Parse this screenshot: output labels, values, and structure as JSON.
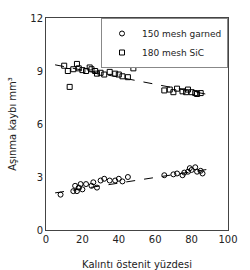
{
  "chart_data": {
    "type": "scatter",
    "xlabel": "Kalıntı östenit yüzdesi",
    "ylabel": "Aşınma kaybı mm³",
    "xlim": [
      0,
      100
    ],
    "ylim": [
      0,
      12
    ],
    "xticks": [
      0,
      20,
      40,
      60,
      80,
      100
    ],
    "yticks": [
      0,
      3,
      6,
      9,
      12
    ],
    "grid": false,
    "legend": "upper right",
    "series": [
      {
        "name": "150 mesh garned",
        "type": "scatter",
        "marker": "circle",
        "color": "black",
        "x": [
          8,
          15,
          16,
          17,
          18,
          19,
          20,
          22,
          25,
          26,
          28,
          30,
          32,
          35,
          38,
          40,
          42,
          45,
          65,
          70,
          72,
          75,
          76,
          78,
          79,
          80,
          82,
          83,
          85,
          86
        ],
        "values": [
          2.0,
          2.2,
          2.5,
          2.2,
          2.4,
          2.6,
          2.3,
          2.6,
          2.5,
          2.7,
          2.4,
          2.8,
          2.9,
          2.8,
          2.8,
          2.9,
          2.75,
          3.0,
          3.1,
          3.15,
          3.2,
          3.1,
          3.25,
          3.3,
          3.5,
          3.4,
          3.55,
          3.3,
          3.35,
          3.2
        ]
      },
      {
        "name": "180 mesh SiC",
        "type": "scatter",
        "marker": "square",
        "color": "black",
        "x": [
          10,
          12,
          15,
          17,
          18,
          20,
          22,
          24,
          25,
          27,
          28,
          30,
          32,
          35,
          38,
          40,
          42,
          45,
          48,
          65,
          68,
          70,
          72,
          75,
          77,
          78,
          80,
          82,
          83,
          85,
          13
        ],
        "values": [
          9.3,
          9.0,
          9.1,
          9.4,
          9.15,
          9.05,
          9.0,
          9.2,
          9.1,
          9.0,
          8.85,
          8.9,
          8.8,
          8.95,
          8.85,
          8.8,
          8.7,
          8.65,
          9.15,
          7.9,
          7.95,
          7.8,
          8.0,
          7.85,
          7.8,
          7.95,
          7.8,
          7.75,
          7.7,
          7.75,
          8.1
        ]
      },
      {
        "type": "line",
        "line_style": "dashed",
        "color": "black",
        "x": [
          5,
          90
        ],
        "values": [
          2.1,
          3.45
        ]
      },
      {
        "type": "line",
        "line_style": "dashed",
        "color": "black",
        "x": [
          5,
          90
        ],
        "values": [
          9.35,
          7.65
        ]
      }
    ]
  }
}
